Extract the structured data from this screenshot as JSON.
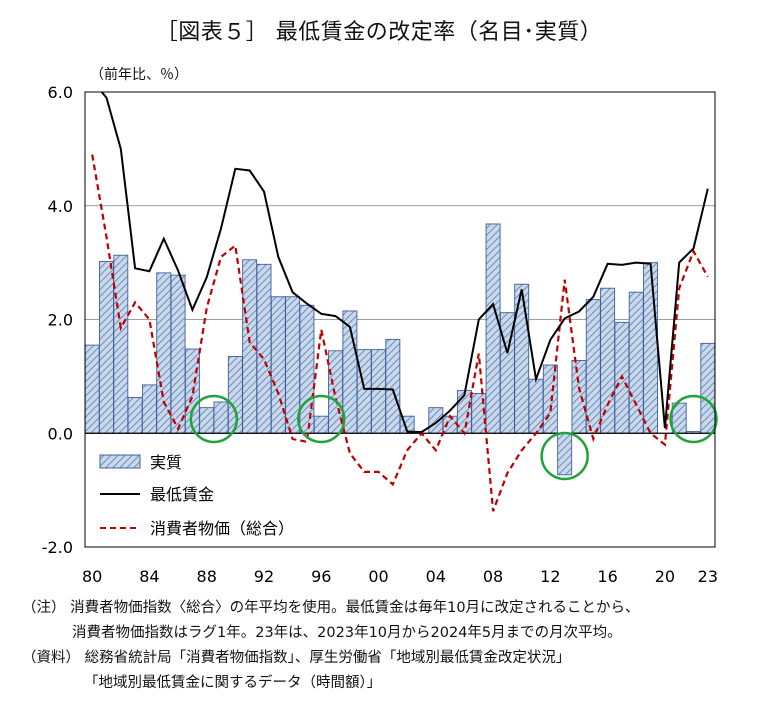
{
  "title": "［図表５］ 最低賃金の改定率（名目･実質）",
  "unit_label": "（前年比、％）",
  "notes": {
    "note_label": "（注）",
    "note_line1": "消費者物価指数〈総合〉の年平均を使用。最低賃金は毎年10月に改定されることから、",
    "note_line2": "消費者物価指数はラグ1年。23年は、2023年10月から2024年5月までの月次平均。",
    "source_label": "（資料）",
    "source_line1": "総務省統計局「消費者物価指数」、厚生労働省「地域別最低賃金改定状況」",
    "source_line2": "「地域別最低賃金に関するデータ（時間額）」"
  },
  "colors": {
    "bar_fill": "#c9d9ec",
    "bar_stroke": "#3f5f9a",
    "nominal_line": "#000000",
    "cpi_line": "#c00000",
    "circle": "#22a33a"
  },
  "chart_data": {
    "type": "bar+line",
    "x": [
      1980,
      1981,
      1982,
      1983,
      1984,
      1985,
      1986,
      1987,
      1988,
      1989,
      1990,
      1991,
      1992,
      1993,
      1994,
      1995,
      1996,
      1997,
      1998,
      1999,
      2000,
      2001,
      2002,
      2003,
      2004,
      2005,
      2006,
      2007,
      2008,
      2009,
      2010,
      2011,
      2012,
      2013,
      2014,
      2015,
      2016,
      2017,
      2018,
      2019,
      2020,
      2021,
      2022,
      2023
    ],
    "xtick_labels": [
      "80",
      "84",
      "88",
      "92",
      "96",
      "00",
      "04",
      "08",
      "12",
      "16",
      "20",
      "23"
    ],
    "xtick_years": [
      1980,
      1984,
      1988,
      1992,
      1996,
      2000,
      2004,
      2008,
      2012,
      2016,
      2020,
      2023
    ],
    "ylim": [
      -2.0,
      6.0
    ],
    "yticks": [
      -2.0,
      0.0,
      2.0,
      4.0,
      6.0
    ],
    "ytick_labels": [
      "-2.0",
      "0.0",
      "2.0",
      "4.0",
      "6.0"
    ],
    "series": [
      {
        "name": "実質",
        "kind": "bar",
        "values": [
          1.55,
          3.02,
          3.13,
          0.63,
          0.85,
          2.82,
          2.78,
          1.48,
          0.45,
          0.55,
          1.35,
          3.05,
          2.97,
          2.4,
          2.4,
          2.25,
          0.3,
          1.45,
          2.15,
          1.47,
          1.47,
          1.65,
          0.3,
          0.0,
          0.45,
          0.3,
          0.75,
          0.7,
          3.68,
          2.12,
          2.62,
          0.95,
          1.2,
          -0.73,
          1.28,
          2.35,
          2.55,
          1.95,
          2.48,
          3.0,
          0.0,
          0.53,
          0.03,
          1.58
        ]
      },
      {
        "name": "最低賃金",
        "kind": "line",
        "values": [
          6.2,
          5.9,
          5.0,
          2.9,
          2.85,
          3.42,
          2.86,
          2.17,
          2.74,
          3.6,
          4.65,
          4.62,
          4.25,
          3.1,
          2.48,
          2.28,
          2.1,
          2.06,
          1.87,
          0.78,
          0.78,
          0.77,
          0.03,
          0.02,
          0.18,
          0.4,
          0.67,
          2.0,
          2.27,
          1.41,
          2.53,
          0.95,
          1.64,
          2.02,
          2.14,
          2.4,
          2.98,
          2.96,
          3.0,
          2.98,
          0.09,
          3.0,
          3.25,
          4.3
        ]
      },
      {
        "name": "消費者物価（総合）",
        "kind": "dashed-line",
        "values": [
          4.9,
          3.45,
          1.85,
          2.3,
          2.0,
          0.55,
          0.08,
          0.65,
          2.2,
          3.1,
          3.3,
          1.6,
          1.3,
          0.7,
          -0.1,
          -0.15,
          1.82,
          0.62,
          -0.35,
          -0.68,
          -0.68,
          -0.9,
          -0.3,
          0.0,
          -0.3,
          0.3,
          0.0,
          1.4,
          -1.37,
          -0.7,
          -0.3,
          0.0,
          0.35,
          2.7,
          0.8,
          -0.1,
          0.5,
          1.0,
          0.5,
          0.0,
          -0.2,
          2.55,
          3.2,
          2.75
        ]
      }
    ],
    "legend_position": "lower-left inside plot",
    "grid": "horizontal major gridlines",
    "annotations": [
      {
        "kind": "circle",
        "year": 1988.5,
        "value": 0.25
      },
      {
        "kind": "circle",
        "year": 1996.0,
        "value": 0.25
      },
      {
        "kind": "circle",
        "year": 2013.0,
        "value": -0.4
      },
      {
        "kind": "circle",
        "year": 2022.0,
        "value": 0.25
      }
    ]
  }
}
